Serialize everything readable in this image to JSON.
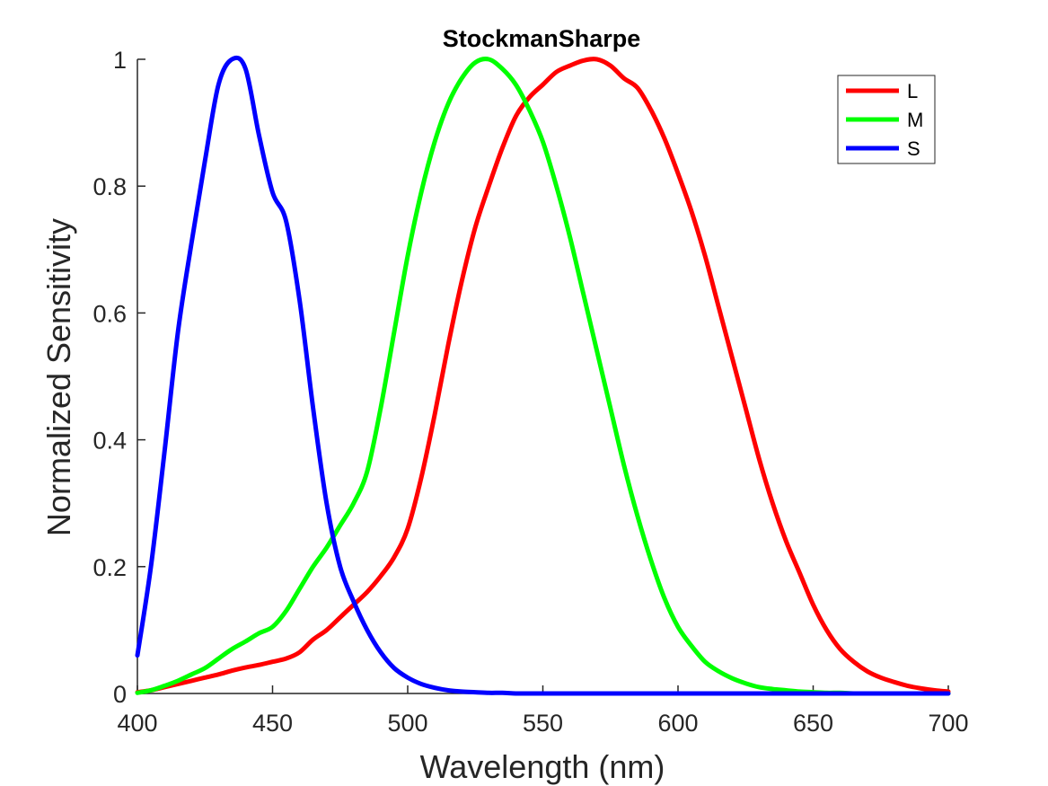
{
  "colors": {
    "L": "#ff0000",
    "M": "#00ff00",
    "S": "#0000ff",
    "axis": "#262626"
  },
  "chart_data": {
    "type": "line",
    "title": "StockmanSharpe",
    "xlabel": "Wavelength (nm)",
    "ylabel": "Normalized Sensitivity",
    "xlim": [
      400,
      700
    ],
    "ylim": [
      0,
      1
    ],
    "xticks": [
      400,
      450,
      500,
      550,
      600,
      650,
      700
    ],
    "yticks": [
      0,
      0.2,
      0.4,
      0.6,
      0.8,
      1
    ],
    "xtick_labels": [
      "400",
      "450",
      "500",
      "550",
      "600",
      "650",
      "700"
    ],
    "ytick_labels": [
      "0",
      "0.2",
      "0.4",
      "0.6",
      "0.8",
      "1"
    ],
    "grid": false,
    "box": false,
    "legend_position": "top-right",
    "series": [
      {
        "name": "L",
        "color": "#ff0000",
        "x": [
          400,
          405,
          410,
          415,
          420,
          425,
          430,
          435,
          440,
          445,
          450,
          455,
          460,
          465,
          470,
          475,
          480,
          485,
          490,
          495,
          500,
          505,
          510,
          515,
          520,
          525,
          530,
          535,
          540,
          545,
          550,
          555,
          560,
          565,
          570,
          575,
          580,
          585,
          590,
          595,
          600,
          605,
          610,
          615,
          620,
          625,
          630,
          635,
          640,
          645,
          650,
          655,
          660,
          665,
          670,
          675,
          680,
          685,
          690,
          695,
          700
        ],
        "y": [
          0.002,
          0.005,
          0.01,
          0.015,
          0.02,
          0.025,
          0.03,
          0.036,
          0.041,
          0.045,
          0.05,
          0.055,
          0.065,
          0.085,
          0.1,
          0.12,
          0.14,
          0.16,
          0.185,
          0.215,
          0.26,
          0.34,
          0.44,
          0.55,
          0.65,
          0.735,
          0.8,
          0.86,
          0.91,
          0.94,
          0.96,
          0.98,
          0.99,
          0.998,
          1.0,
          0.99,
          0.97,
          0.955,
          0.92,
          0.875,
          0.82,
          0.76,
          0.69,
          0.61,
          0.53,
          0.45,
          0.37,
          0.3,
          0.24,
          0.19,
          0.14,
          0.1,
          0.07,
          0.05,
          0.035,
          0.025,
          0.018,
          0.012,
          0.008,
          0.005,
          0.003
        ]
      },
      {
        "name": "M",
        "color": "#00ff00",
        "x": [
          400,
          405,
          410,
          415,
          420,
          425,
          430,
          435,
          440,
          445,
          450,
          455,
          460,
          465,
          470,
          475,
          480,
          485,
          490,
          495,
          500,
          505,
          510,
          515,
          520,
          525,
          530,
          535,
          540,
          545,
          550,
          555,
          560,
          565,
          570,
          575,
          580,
          585,
          590,
          595,
          600,
          605,
          610,
          615,
          620,
          625,
          630,
          635,
          640,
          645,
          650,
          655,
          660,
          665,
          670,
          675,
          680,
          685,
          690,
          695,
          700
        ],
        "y": [
          0.001,
          0.005,
          0.012,
          0.02,
          0.03,
          0.04,
          0.055,
          0.07,
          0.082,
          0.095,
          0.105,
          0.13,
          0.165,
          0.2,
          0.23,
          0.265,
          0.3,
          0.35,
          0.45,
          0.57,
          0.69,
          0.79,
          0.87,
          0.93,
          0.97,
          0.995,
          1.0,
          0.985,
          0.96,
          0.92,
          0.87,
          0.8,
          0.72,
          0.63,
          0.54,
          0.45,
          0.36,
          0.28,
          0.21,
          0.15,
          0.105,
          0.075,
          0.05,
          0.035,
          0.024,
          0.016,
          0.01,
          0.007,
          0.005,
          0.003,
          0.002,
          0.001,
          0.001,
          0.0,
          0.0,
          0.0,
          0.0,
          0.0,
          0.0,
          0.0,
          0.0
        ]
      },
      {
        "name": "S",
        "color": "#0000ff",
        "x": [
          400,
          405,
          410,
          415,
          420,
          425,
          430,
          435,
          440,
          445,
          450,
          455,
          460,
          465,
          470,
          475,
          480,
          485,
          490,
          495,
          500,
          505,
          510,
          515,
          520,
          525,
          530,
          535,
          540,
          545,
          550,
          555,
          560,
          565,
          570,
          575,
          580,
          585,
          590,
          595,
          600,
          605,
          610,
          615,
          620,
          625,
          630,
          635,
          640,
          645,
          650,
          655,
          660,
          665,
          670,
          675,
          680,
          685,
          690,
          695,
          700
        ],
        "y": [
          0.06,
          0.2,
          0.38,
          0.57,
          0.71,
          0.84,
          0.96,
          1.0,
          0.985,
          0.88,
          0.79,
          0.745,
          0.62,
          0.45,
          0.3,
          0.2,
          0.145,
          0.1,
          0.065,
          0.04,
          0.025,
          0.015,
          0.009,
          0.005,
          0.003,
          0.002,
          0.001,
          0.001,
          0.0,
          0.0,
          0.0,
          0.0,
          0.0,
          0.0,
          0.0,
          0.0,
          0.0,
          0.0,
          0.0,
          0.0,
          0.0,
          0.0,
          0.0,
          0.0,
          0.0,
          0.0,
          0.0,
          0.0,
          0.0,
          0.0,
          0.0,
          0.0,
          0.0,
          0.0,
          0.0,
          0.0,
          0.0,
          0.0,
          0.0,
          0.0,
          0.0
        ]
      }
    ]
  }
}
